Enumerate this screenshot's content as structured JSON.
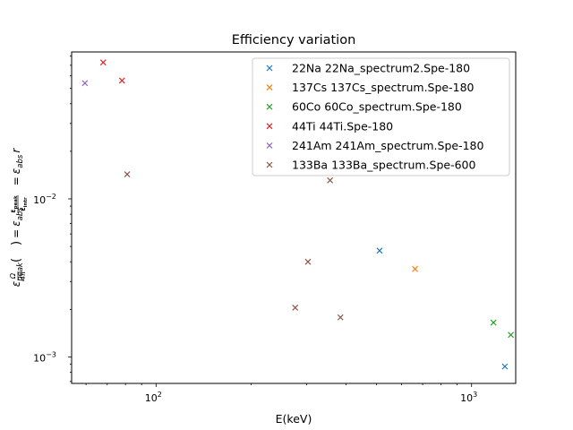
{
  "chart_data": {
    "type": "scatter",
    "title": "Efficiency variation",
    "xlabel": "E(keV)",
    "ylabel_parts": {
      "eps": "ε",
      "peak": "peak",
      "omega": "Ω",
      "fourpi": "4π",
      "equals": "=",
      "abs": "abs",
      "peak_bold": "peak",
      "intr_bold": "intr",
      "r": "r"
    },
    "x_scale": "log",
    "y_scale": "log",
    "xlim": [
      54,
      1380
    ],
    "ylim": [
      0.00068,
      0.085
    ],
    "x_ticks": [
      {
        "value": 100,
        "base": "10",
        "exp": "2"
      },
      {
        "value": 1000,
        "base": "10",
        "exp": "3"
      }
    ],
    "y_ticks": [
      {
        "value": 0.001,
        "base": "10",
        "exp": "−3"
      },
      {
        "value": 0.01,
        "base": "10",
        "exp": "−2"
      }
    ],
    "grid": false,
    "legend_position": "top-right",
    "marker": "×",
    "series": [
      {
        "name": "22Na 22Na_spectrum2.Spe-180",
        "color": "#1f77b4",
        "points": [
          [
            511,
            0.0047
          ],
          [
            1275,
            0.00087
          ]
        ]
      },
      {
        "name": "137Cs 137Cs_spectrum.Spe-180",
        "color": "#ff7f0e",
        "points": [
          [
            662,
            0.0036
          ]
        ]
      },
      {
        "name": "60Co 60Co_spectrum.Spe-180",
        "color": "#2ca02c",
        "points": [
          [
            1173,
            0.00165
          ],
          [
            1332,
            0.00138
          ]
        ]
      },
      {
        "name": "44Ti 44Ti.Spe-180",
        "color": "#d62728",
        "points": [
          [
            68,
            0.073
          ],
          [
            78,
            0.056
          ]
        ]
      },
      {
        "name": "241Am 241Am_spectrum.Spe-180",
        "color": "#9467bd",
        "points": [
          [
            59.5,
            0.054
          ]
        ]
      },
      {
        "name": "133Ba 133Ba_spectrum.Spe-600",
        "color": "#8c564b",
        "points": [
          [
            81,
            0.0143
          ],
          [
            276,
            0.00205
          ],
          [
            303,
            0.004
          ],
          [
            356,
            0.0131
          ],
          [
            384,
            0.00178
          ]
        ]
      }
    ]
  }
}
